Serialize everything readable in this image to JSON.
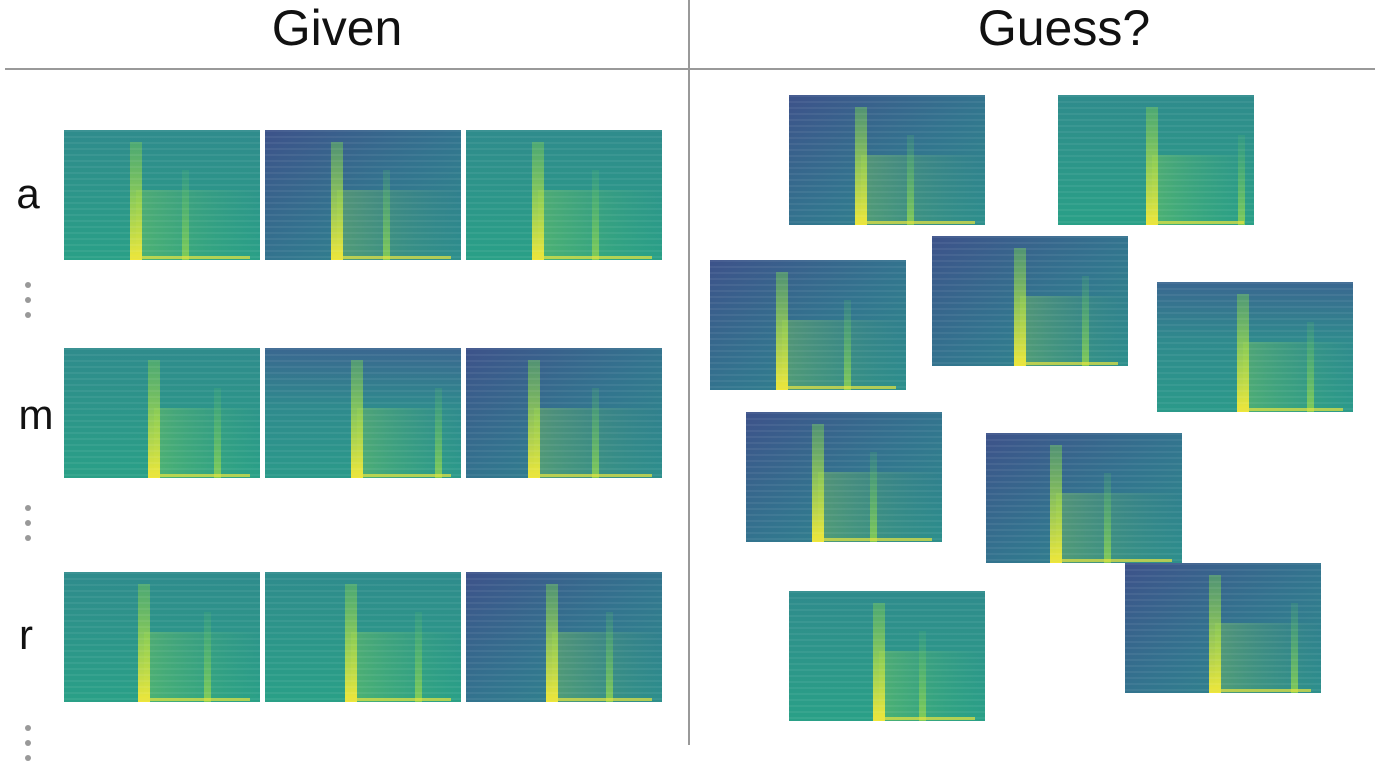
{
  "header": {
    "given": "Given",
    "guess": "Guess?"
  },
  "rows": [
    {
      "label": "a"
    },
    {
      "label": "m"
    },
    {
      "label": "r"
    }
  ]
}
